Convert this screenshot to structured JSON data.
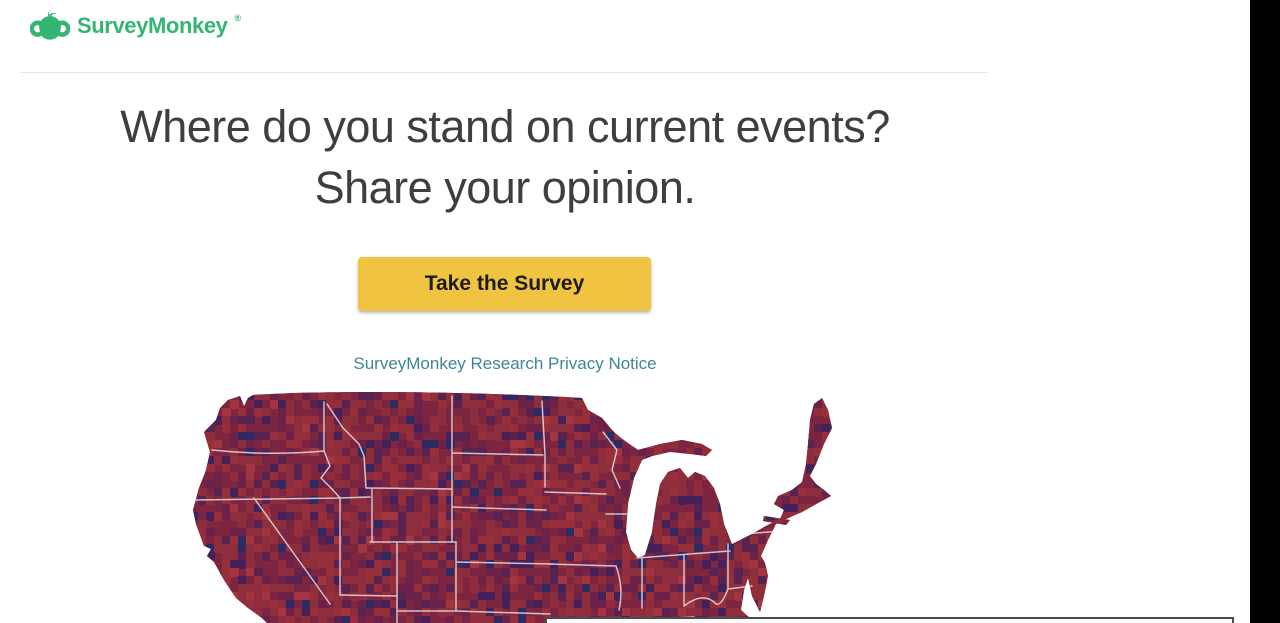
{
  "header": {
    "logo_text": "SurveyMonkey",
    "registered_mark": "®",
    "brand_color": "#35b574"
  },
  "hero": {
    "title_line1": "Where do you stand on current events?",
    "title_line2": "Share your opinion.",
    "button_label": "Take the Survey",
    "button_color": "#f0c340",
    "privacy_link_label": "SurveyMonkey Research Privacy Notice",
    "link_color": "#3e8696"
  },
  "map": {
    "description": "united-states-county-choropleth",
    "base_color": "#7e2540",
    "state_border_color": "#d9d0d5",
    "palette": [
      [
        "#8e2d3c",
        0.28
      ],
      [
        "#962f39",
        0.14
      ],
      [
        "#7c2540",
        0.2
      ],
      [
        "#6b2148",
        0.12
      ],
      [
        "#582251",
        0.1
      ],
      [
        "#452059",
        0.07
      ],
      [
        "#2f2a62",
        0.04
      ],
      [
        "#a23540",
        0.05
      ]
    ]
  },
  "dialog": {
    "border_color": "#4b4b4b"
  }
}
